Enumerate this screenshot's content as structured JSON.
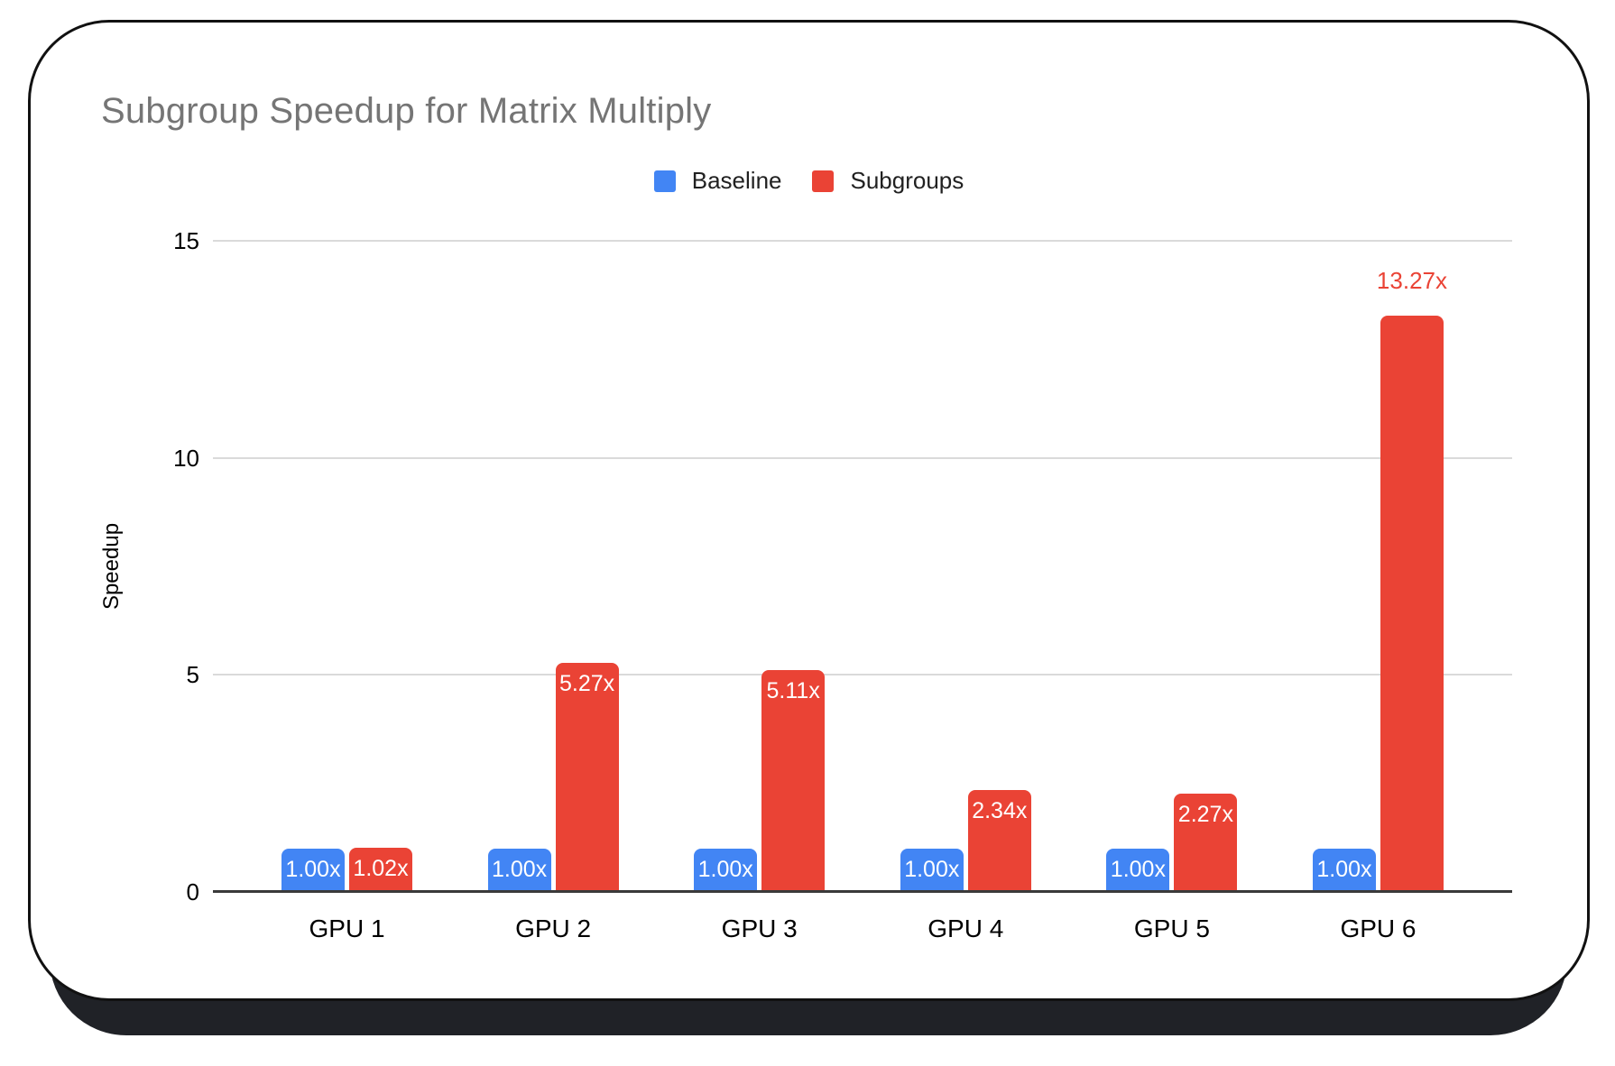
{
  "card": {
    "background": "#ffffff",
    "border_color": "#111111",
    "shadow_color": "#202227"
  },
  "chart_data": {
    "type": "bar",
    "title": "Subgroup Speedup for Matrix Multiply",
    "title_color": "#757575",
    "xlabel": "",
    "ylabel": "Speedup",
    "categories": [
      "GPU 1",
      "GPU 2",
      "GPU 3",
      "GPU 4",
      "GPU 5",
      "GPU 6"
    ],
    "series": [
      {
        "name": "Baseline",
        "color": "#4285F4",
        "values": [
          1.0,
          1.0,
          1.0,
          1.0,
          1.0,
          1.0
        ],
        "labels": [
          "1.00x",
          "1.00x",
          "1.00x",
          "1.00x",
          "1.00x",
          "1.00x"
        ]
      },
      {
        "name": "Subgroups",
        "color": "#EA4335",
        "values": [
          1.02,
          5.27,
          5.11,
          2.34,
          2.27,
          13.27
        ],
        "labels": [
          "1.02x",
          "5.27x",
          "5.11x",
          "2.34x",
          "2.27x",
          "13.27x"
        ]
      }
    ],
    "ylim": [
      0,
      15
    ],
    "yticks": [
      0,
      5,
      10,
      15
    ],
    "grid": true,
    "legend_position": "top",
    "bar_label_color_inside": "#ffffff",
    "gridline_color": "#dadada",
    "axis_line_color": "#3a3a3a",
    "tick_label_color": "#000000",
    "category_label_color": "#000000"
  }
}
